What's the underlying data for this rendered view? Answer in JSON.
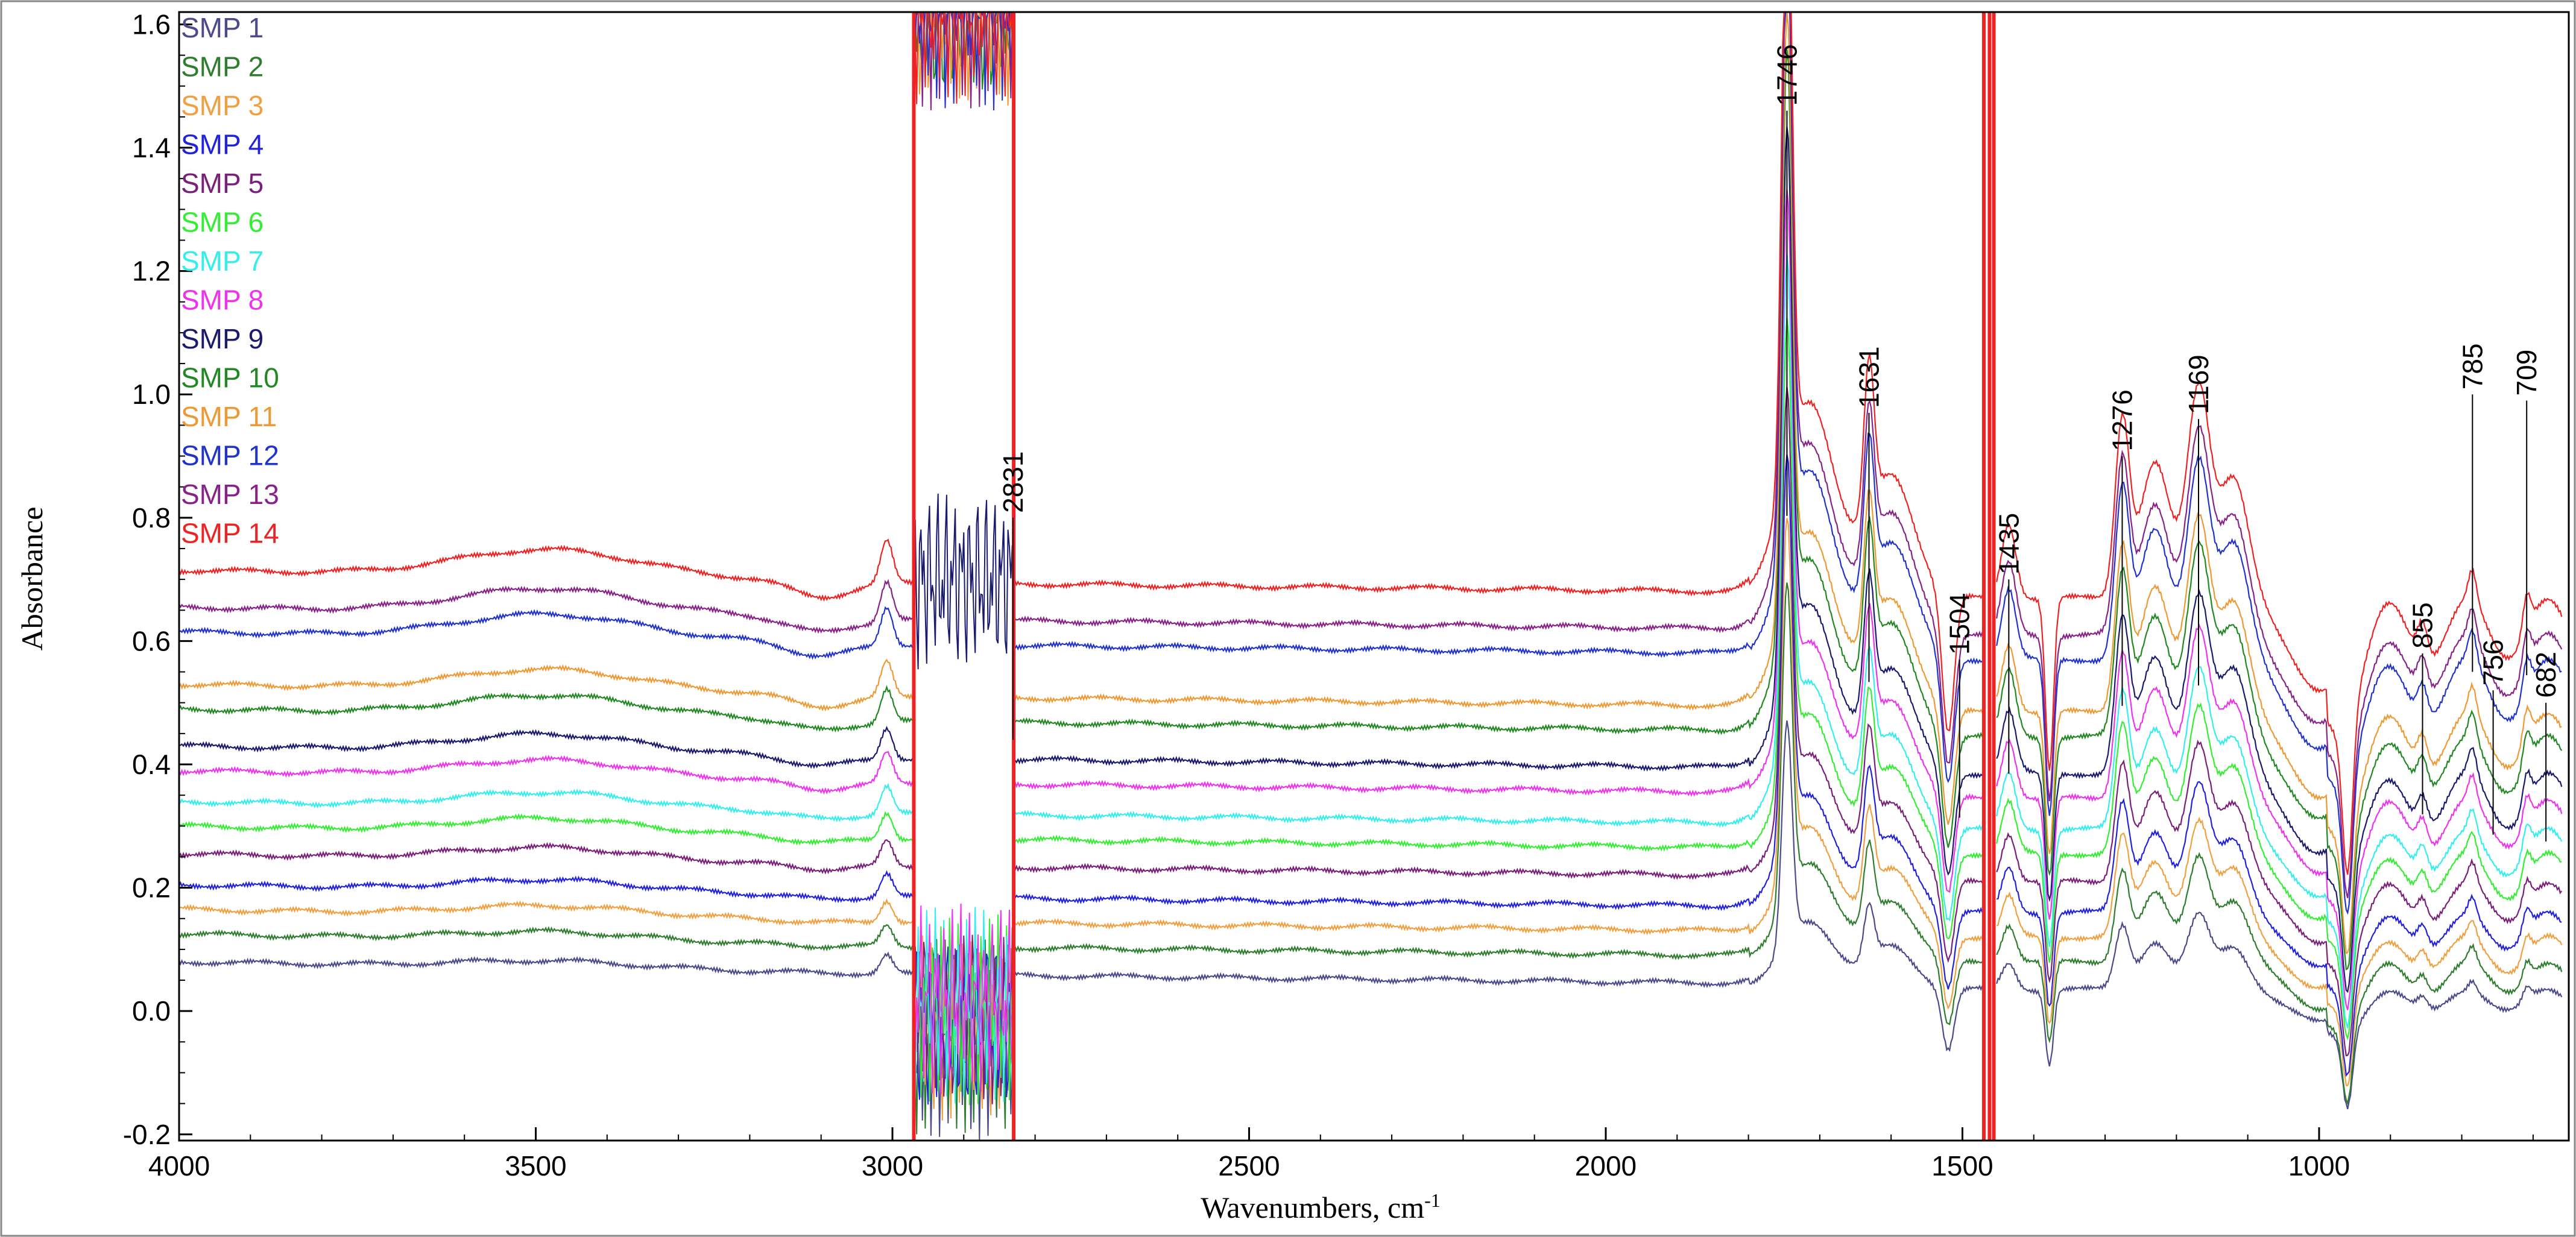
{
  "chart_data": {
    "type": "line",
    "title": "",
    "xlabel": "Wavenumbers, cm",
    "xlabel_superscript": "-1",
    "ylabel": "Absorbance",
    "xlim": [
      4000,
      650
    ],
    "ylim": [
      -0.21,
      1.62
    ],
    "x_reversed": true,
    "grid": false,
    "legend_position": "top-left",
    "x_ticks": [
      "4000",
      "3500",
      "3000",
      "2500",
      "2000",
      "1500",
      "1000"
    ],
    "y_ticks": [
      "-0.2",
      "0.0",
      "0.2",
      "0.4",
      "0.6",
      "0.8",
      "1.0",
      "1.2",
      "1.4",
      "1.6"
    ],
    "peak_labels": [
      "1746",
      "1631",
      "1504",
      "1435",
      "1276",
      "1169",
      "2831",
      "855",
      "785",
      "756",
      "709",
      "682"
    ],
    "series": [
      {
        "name": "SMP 1",
        "color": "#4b4b8c"
      },
      {
        "name": "SMP 2",
        "color": "#2f7d2f"
      },
      {
        "name": "SMP 3",
        "color": "#f0a040"
      },
      {
        "name": "SMP 4",
        "color": "#2222dd"
      },
      {
        "name": "SMP 5",
        "color": "#7a1f7a"
      },
      {
        "name": "SMP 6",
        "color": "#33ee33"
      },
      {
        "name": "SMP 7",
        "color": "#33eeee"
      },
      {
        "name": "SMP 8",
        "color": "#ee33ee"
      },
      {
        "name": "SMP 9",
        "color": "#1a1a6e"
      },
      {
        "name": "SMP 10",
        "color": "#228822"
      },
      {
        "name": "SMP 11",
        "color": "#ee9933"
      },
      {
        "name": "SMP 12",
        "color": "#2233cc"
      },
      {
        "name": "SMP 13",
        "color": "#882288"
      },
      {
        "name": "SMP 14",
        "color": "#ee2222"
      }
    ],
    "series_baseline_offsets": [
      0.0,
      0.045,
      0.085,
      0.125,
      0.175,
      0.22,
      0.26,
      0.31,
      0.35,
      0.41,
      0.45,
      0.535,
      0.575,
      0.635
    ],
    "series_peak_scale": [
      0.35,
      0.5,
      0.55,
      0.6,
      0.65,
      0.7,
      0.75,
      0.8,
      0.85,
      0.9,
      0.92,
      0.95,
      0.97,
      1.0
    ],
    "features": {
      "baseline_at_4000": 0.08,
      "baseline_at_3000": 0.06,
      "baseline_at_1800": 0.045,
      "peak_1746": 1.12,
      "peak_1631": 0.55,
      "peak_1169": 0.6,
      "saturated_band": [
        2970,
        2830
      ]
    }
  }
}
